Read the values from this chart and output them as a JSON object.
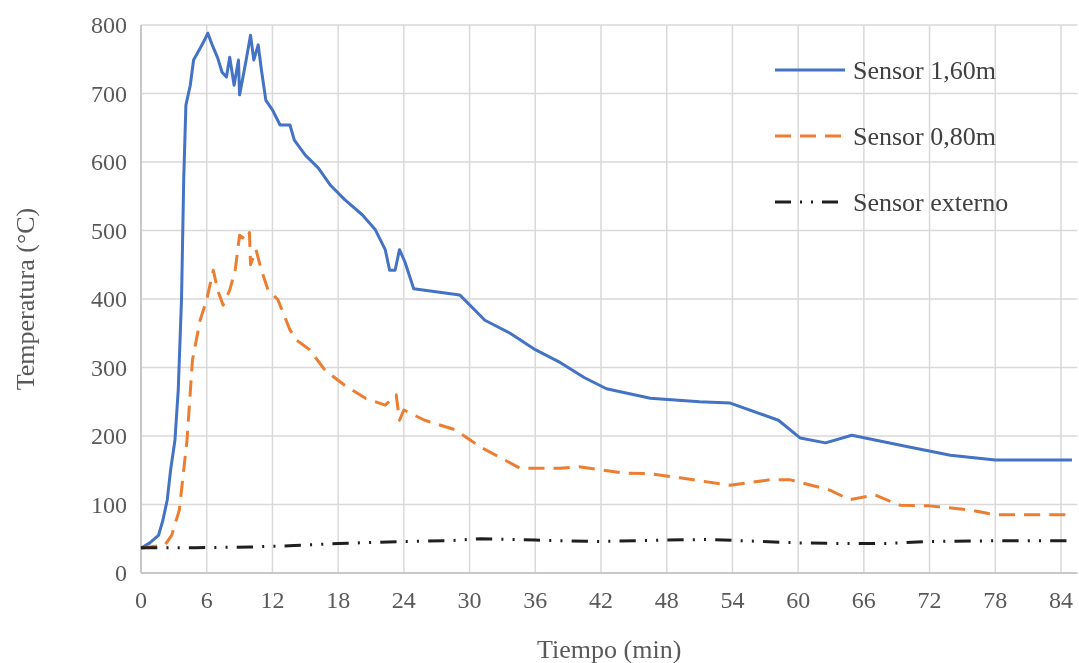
{
  "chart_data": {
    "type": "line",
    "xlabel": "Tiempo (min)",
    "ylabel": "Temperatura (°C)",
    "xlim": [
      0,
      85.5
    ],
    "xticks": [
      0,
      6,
      12,
      18,
      24,
      30,
      36,
      42,
      48,
      54,
      60,
      66,
      72,
      78,
      84
    ],
    "ylim": [
      0,
      800
    ],
    "yticks": [
      0,
      100,
      200,
      300,
      400,
      500,
      600,
      700,
      800
    ],
    "grid": true,
    "legend": "top right",
    "series": [
      {
        "name": "Sensor 1,60m",
        "color": "#4472c4",
        "line_style": "solid",
        "x": [
          0,
          0.8,
          1.6,
          2,
          2.4,
          2.7,
          3.1,
          3.4,
          3.7,
          3.9,
          4.1,
          4.5,
          4.8,
          5.4,
          5.8,
          6.1,
          6.5,
          7,
          7.4,
          7.8,
          8.1,
          8.5,
          8.9,
          9,
          9.3,
          9.6,
          10,
          10.3,
          10.7,
          11,
          11.4,
          12,
          12.7,
          13.6,
          14,
          15,
          16.2,
          17.3,
          18.6,
          20.2,
          21.4,
          22.3,
          22.7,
          23.2,
          23.6,
          24.1,
          24.9,
          29.1,
          31.4,
          33.7,
          36,
          38.3,
          40.5,
          42.5,
          46.5,
          51,
          53.8,
          58.2,
          60.2,
          62.5,
          64.9,
          69.8,
          73.9,
          78,
          85
        ],
        "values": [
          36,
          44,
          55,
          77,
          107,
          150,
          194,
          267,
          400,
          574,
          683,
          712,
          749,
          766,
          778,
          788,
          771,
          752,
          731,
          724,
          753,
          712,
          749,
          698,
          723,
          749,
          785,
          749,
          771,
          734,
          690,
          676,
          654,
          654,
          632,
          610,
          591,
          566,
          545,
          523,
          501,
          472,
          442,
          442,
          472,
          454,
          415,
          406,
          369,
          350,
          326,
          307,
          285,
          269,
          255,
          250,
          248,
          223,
          197,
          190,
          201,
          185,
          172,
          165,
          165
        ]
      },
      {
        "name": "Sensor 0,80m",
        "color": "#ed7d31",
        "line_style": "dashed",
        "x": [
          0,
          2.2,
          2.8,
          3.5,
          4.2,
          4.7,
          5.4,
          6,
          6.6,
          7,
          7.5,
          8.1,
          8.6,
          9,
          9.6,
          9.9,
          10,
          10.5,
          11,
          11.6,
          12.5,
          13.6,
          14.2,
          15.4,
          16.8,
          18.6,
          20.5,
          22.3,
          23.3,
          23.6,
          24,
          25.9,
          28.7,
          31,
          34.6,
          38.3,
          40,
          44,
          46.5,
          49.2,
          53.8,
          57.4,
          59.3,
          62.9,
          64.7,
          67,
          69.3,
          72,
          75.7,
          78,
          84.4
        ],
        "values": [
          36,
          41,
          55,
          92,
          194,
          311,
          369,
          399,
          442,
          413,
          391,
          413,
          442,
          493,
          486,
          497,
          450,
          472,
          442,
          413,
          399,
          355,
          340,
          326,
          296,
          274,
          255,
          245,
          260,
          223,
          238,
          223,
          209,
          184,
          153,
          153,
          155,
          146,
          145,
          139,
          128,
          136,
          136,
          121,
          107,
          114,
          99,
          98,
          92,
          85,
          85
        ]
      },
      {
        "name": "Sensor externo",
        "color": "#1f1f1f",
        "line_style": "dotted",
        "x": [
          0,
          5,
          10,
          14,
          18,
          24,
          28,
          31,
          36,
          42,
          48,
          52,
          55,
          60,
          64,
          68,
          72,
          78,
          84.5
        ],
        "values": [
          37,
          37,
          38,
          40,
          43,
          46,
          47,
          50,
          48,
          46,
          48,
          49,
          47,
          44,
          43,
          43,
          46,
          47,
          47
        ]
      }
    ]
  }
}
